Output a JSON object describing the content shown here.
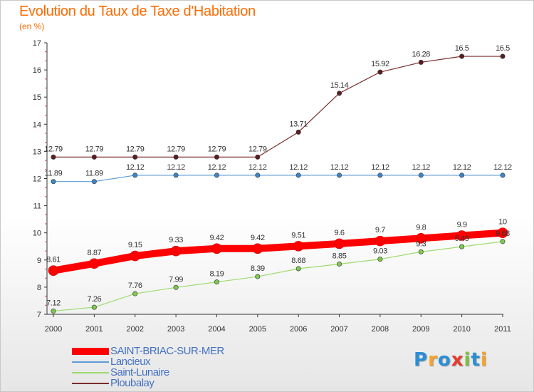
{
  "title": "Evolution du Taux de Taxe d'Habitation",
  "subtitle": "(en %)",
  "logo": {
    "text": "Proxiti",
    "letters": [
      "P",
      "r",
      "o",
      "x",
      "i",
      "t",
      "i"
    ],
    "colors": [
      "#2a8fd6",
      "#f7a325",
      "#2a8fd6",
      "#e63c2f",
      "#7fbf3f",
      "#2a8fd6",
      "#f7a325"
    ]
  },
  "chart_data": {
    "type": "line",
    "title": "Evolution du Taux de Taxe d'Habitation",
    "ylabel": "(en %)",
    "xlabel": "",
    "x": [
      "2000",
      "2001",
      "2002",
      "2003",
      "2004",
      "2005",
      "2006",
      "2007",
      "2008",
      "2009",
      "2010",
      "2011"
    ],
    "ylim": [
      7,
      17
    ],
    "yticks": [
      "7",
      "8",
      "9",
      "10",
      "11",
      "12",
      "13",
      "14",
      "15",
      "16",
      "17"
    ],
    "grid": false,
    "legend_position": "bottom-left",
    "series": [
      {
        "name": "SAINT-BRIAC-SUR-MER",
        "color": "#ff0000",
        "values": [
          8.61,
          8.87,
          9.15,
          9.33,
          9.42,
          9.42,
          9.51,
          9.6,
          9.7,
          9.8,
          9.9,
          10
        ],
        "labels": [
          "8.61",
          "8.87",
          "9.15",
          "9.33",
          "9.42",
          "9.42",
          "9.51",
          "9.6",
          "9.7",
          "9.8",
          "9.9",
          "10"
        ]
      },
      {
        "name": "Lancieux",
        "color": "#5b9bd5",
        "values": [
          11.89,
          11.89,
          12.12,
          12.12,
          12.12,
          12.12,
          12.12,
          12.12,
          12.12,
          12.12,
          12.12,
          12.12
        ],
        "labels": [
          "11.89",
          "11.89",
          "12.12",
          "12.12",
          "12.12",
          "12.12",
          "12.12",
          "12.12",
          "12.12",
          "12.12",
          "12.12",
          "12.12"
        ]
      },
      {
        "name": "Saint-Lunaire",
        "color": "#9edb6e",
        "values": [
          7.12,
          7.26,
          7.76,
          7.99,
          8.19,
          8.39,
          8.68,
          8.85,
          9.03,
          9.3,
          9.49,
          9.68
        ],
        "labels": [
          "7.12",
          "7.26",
          "7.76",
          "7.99",
          "8.19",
          "8.39",
          "8.68",
          "8.85",
          "9.03",
          "9.3",
          "9.49",
          "9.68"
        ]
      },
      {
        "name": "Ploubalay",
        "color": "#7b2c2c",
        "values": [
          12.79,
          12.79,
          12.79,
          12.79,
          12.79,
          12.79,
          13.71,
          15.14,
          15.92,
          16.28,
          16.5,
          16.5
        ],
        "labels": [
          "12.79",
          "12.79",
          "12.79",
          "12.79",
          "12.79",
          "12.79",
          "13.71",
          "15.14",
          "15.92",
          "16.28",
          "16.5",
          "16.5"
        ]
      }
    ]
  }
}
